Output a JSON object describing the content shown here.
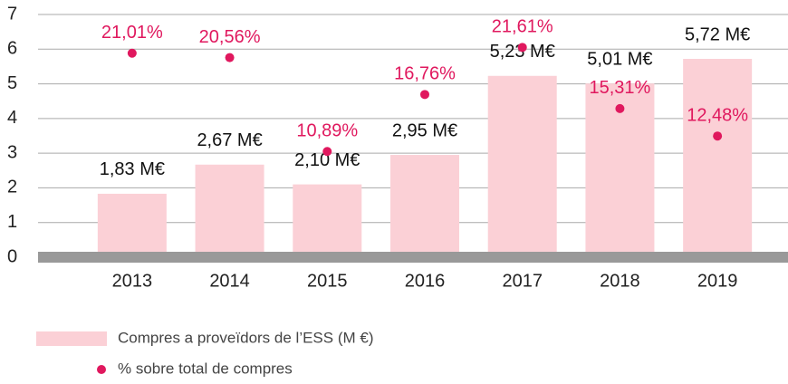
{
  "chart_data": {
    "type": "bar",
    "categories": [
      "2013",
      "2014",
      "2015",
      "2016",
      "2017",
      "2018",
      "2019"
    ],
    "ylim": [
      0,
      7
    ],
    "yticks": [
      0,
      1,
      2,
      3,
      4,
      5,
      6,
      7
    ],
    "y2lim": [
      0,
      25
    ],
    "grid": true,
    "legend": "bottom",
    "series": [
      {
        "name": "Compres a proveïdors de l’ESS (M €)",
        "type": "bar",
        "color": "#fbd0d6",
        "values": [
          1.83,
          2.67,
          2.1,
          2.95,
          5.23,
          5.01,
          5.72
        ],
        "value_labels": [
          "1,83 M€",
          "2,67 M€",
          "2,10 M€",
          "2,95 M€",
          "5,23 M€",
          "5,01 M€",
          "5,72 M€"
        ]
      },
      {
        "name": "% sobre total de compres",
        "type": "scatter",
        "axis": "y2",
        "color": "#e0185e",
        "values": [
          21.01,
          20.56,
          10.89,
          16.76,
          21.61,
          15.31,
          12.48
        ],
        "value_labels": [
          "21,01%",
          "20,56%",
          "10,89%",
          "16,76%",
          "21,61%",
          "15,31%",
          "12,48%"
        ]
      }
    ]
  }
}
